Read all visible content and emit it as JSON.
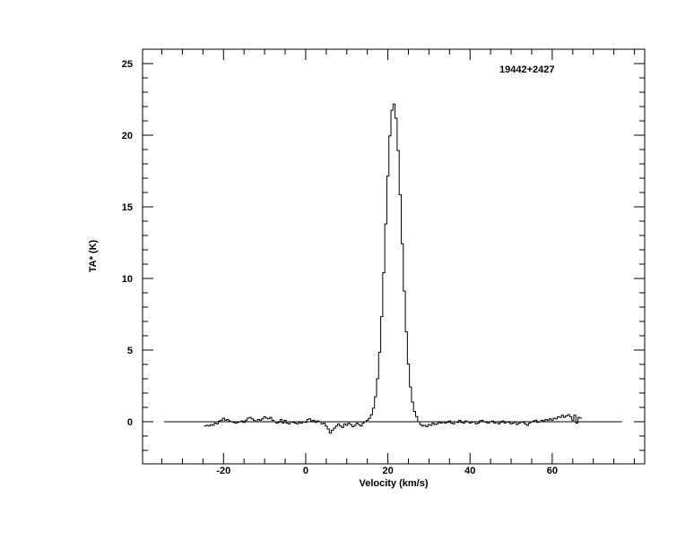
{
  "chart_data": {
    "type": "line",
    "style": "step",
    "title": "",
    "annotation": "19442+2427",
    "xlabel": "Velocity (km/s)",
    "ylabel": "TA* (K)",
    "xlim": [
      -39.7,
      82.5
    ],
    "ylim": [
      -2.94,
      26
    ],
    "x_major_ticks": [
      -20,
      0,
      20,
      40,
      60
    ],
    "x_tick_labels": [
      "-20",
      "0",
      "20",
      "40",
      "60"
    ],
    "x_minor_step": 5,
    "y_major_ticks": [
      0,
      5,
      10,
      15,
      20,
      25
    ],
    "y_tick_labels": [
      "0",
      "5",
      "10",
      "15",
      "20",
      "25"
    ],
    "y_minor_step": 1,
    "grid": false,
    "zero_line": {
      "y": 0,
      "x_range": [
        -34.5,
        77
      ]
    },
    "line_color": "#000000",
    "series": [
      {
        "x": [
          -24.5,
          -24,
          -23.5,
          -23,
          -22.5,
          -22,
          -21.5,
          -21,
          -20.5,
          -20,
          -19.5,
          -19,
          -18.5,
          -18,
          -17.5,
          -17,
          -16.5,
          -16,
          -15.5,
          -15,
          -14.5,
          -14,
          -13.5,
          -13,
          -12.5,
          -12,
          -11.5,
          -11,
          -10.5,
          -10,
          -9.5,
          -9,
          -8.5,
          -8,
          -7.5,
          -7,
          -6.5,
          -6,
          -5.5,
          -5,
          -4.5,
          -4,
          -3.5,
          -3,
          -2.5,
          -2,
          -1.5,
          -1,
          -0.5,
          0,
          0.5,
          1,
          1.5,
          2,
          2.5,
          3,
          3.5,
          4,
          4.5,
          5,
          5.5,
          6,
          6.5,
          7,
          7.5,
          8,
          8.5,
          9,
          9.5,
          10,
          10.5,
          11,
          11.5,
          12,
          12.5,
          13,
          13.5,
          14,
          14.5,
          15,
          15.5,
          16,
          16.5,
          17,
          17.5,
          18,
          18.5,
          19,
          19.5,
          20,
          20.5,
          21,
          21.5,
          22,
          22.5,
          23,
          23.5,
          24,
          24.5,
          25,
          25.5,
          26,
          26.5,
          27,
          27.5,
          28,
          28.5,
          29,
          29.5,
          30,
          30.5,
          31,
          31.5,
          32,
          32.5,
          33,
          33.5,
          34,
          34.5,
          35,
          35.5,
          36,
          36.5,
          37,
          37.5,
          38,
          38.5,
          39,
          39.5,
          40,
          40.5,
          41,
          41.5,
          42,
          42.5,
          43,
          43.5,
          44,
          44.5,
          45,
          45.5,
          46,
          46.5,
          47,
          47.5,
          48,
          48.5,
          49,
          49.5,
          50,
          50.5,
          51,
          51.5,
          52,
          52.5,
          53,
          53.5,
          54,
          54.5,
          55,
          55.5,
          56,
          56.5,
          57,
          57.5,
          58,
          58.5,
          59,
          59.5,
          60,
          60.5,
          61,
          61.5,
          62,
          62.5,
          63,
          63.5,
          64,
          64.5,
          65,
          65.5,
          66,
          66.5,
          67
        ],
        "y": [
          -0.3,
          -0.25,
          -0.3,
          -0.2,
          -0.25,
          -0.1,
          -0.15,
          0.05,
          0.1,
          0.25,
          0.1,
          0.15,
          0.05,
          0.0,
          -0.05,
          -0.1,
          -0.05,
          0.0,
          0.05,
          -0.05,
          0.1,
          0.25,
          0.3,
          0.2,
          0.1,
          0.0,
          0.15,
          0.1,
          0.2,
          0.35,
          0.25,
          0.2,
          0.3,
          0.1,
          0.0,
          -0.1,
          -0.05,
          0.15,
          -0.1,
          0.1,
          -0.1,
          -0.15,
          0.0,
          -0.05,
          -0.1,
          -0.15,
          -0.05,
          -0.1,
          0.0,
          -0.05,
          0.15,
          0.2,
          0.05,
          0.1,
          -0.05,
          0.05,
          0.0,
          -0.15,
          -0.1,
          -0.3,
          -0.5,
          -0.8,
          -0.6,
          -0.45,
          -0.3,
          -0.15,
          -0.3,
          -0.4,
          -0.15,
          -0.25,
          -0.1,
          -0.2,
          -0.35,
          -0.25,
          -0.1,
          -0.2,
          -0.3,
          -0.1,
          0.0,
          0.1,
          0.23,
          0.48,
          0.94,
          1.74,
          3.0,
          4.85,
          7.34,
          10.4,
          13.8,
          17.15,
          19.95,
          21.74,
          22.17,
          21.18,
          18.93,
          15.85,
          12.43,
          9.12,
          6.27,
          4.03,
          2.43,
          1.37,
          0.72,
          0.36,
          0.0,
          -0.2,
          -0.3,
          -0.25,
          -0.35,
          -0.2,
          -0.25,
          -0.1,
          -0.2,
          -0.15,
          -0.05,
          -0.1,
          0.0,
          -0.1,
          -0.05,
          0.05,
          -0.1,
          -0.15,
          0.0,
          -0.05,
          0.1,
          -0.05,
          -0.1,
          0.05,
          0.0,
          -0.1,
          -0.05,
          0.0,
          -0.15,
          -0.1,
          0.05,
          0.1,
          0.0,
          -0.05,
          -0.1,
          0.0,
          0.05,
          -0.1,
          0.0,
          -0.15,
          -0.05,
          0.05,
          -0.1,
          0.0,
          -0.05,
          -0.15,
          -0.1,
          0.0,
          -0.2,
          -0.1,
          0.0,
          -0.05,
          -0.15,
          -0.25,
          -0.1,
          0.0,
          0.05,
          0.1,
          -0.05,
          0.0,
          0.1,
          0.05,
          0.15,
          0.1,
          0.2,
          0.1,
          0.25,
          0.2,
          0.35,
          0.3,
          0.45,
          0.3,
          0.4,
          0.5,
          0.35,
          0.1,
          0.45,
          -0.1,
          0.3,
          0.25
        ]
      }
    ]
  }
}
